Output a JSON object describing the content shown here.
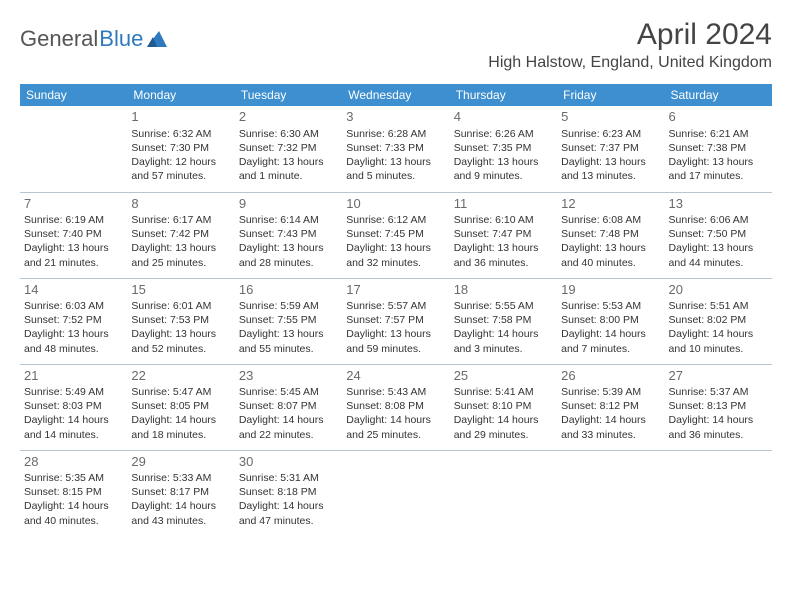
{
  "brand": {
    "word1": "General",
    "word2": "Blue"
  },
  "header": {
    "month": "April 2024",
    "location": "High Halstow, England, United Kingdom"
  },
  "colors": {
    "header_bg": "#3d8fcf",
    "header_text": "#ffffff",
    "grid_line": "#b8c5d0",
    "page_bg": "#ffffff",
    "text": "#333333",
    "brand_blue": "#2f7abf",
    "month_color": "#444444",
    "daynum_color": "#6a6a6a"
  },
  "typography": {
    "month_fontsize": 30,
    "location_fontsize": 16,
    "weekday_fontsize": 12,
    "cell_fontsize": 10.5,
    "daynum_fontsize": 13
  },
  "calendar": {
    "weekdays": [
      "Sunday",
      "Monday",
      "Tuesday",
      "Wednesday",
      "Thursday",
      "Friday",
      "Saturday"
    ],
    "weeks": [
      [
        null,
        {
          "day": "1",
          "sunrise": "Sunrise: 6:32 AM",
          "sunset": "Sunset: 7:30 PM",
          "daylight": "Daylight: 12 hours and 57 minutes."
        },
        {
          "day": "2",
          "sunrise": "Sunrise: 6:30 AM",
          "sunset": "Sunset: 7:32 PM",
          "daylight": "Daylight: 13 hours and 1 minute."
        },
        {
          "day": "3",
          "sunrise": "Sunrise: 6:28 AM",
          "sunset": "Sunset: 7:33 PM",
          "daylight": "Daylight: 13 hours and 5 minutes."
        },
        {
          "day": "4",
          "sunrise": "Sunrise: 6:26 AM",
          "sunset": "Sunset: 7:35 PM",
          "daylight": "Daylight: 13 hours and 9 minutes."
        },
        {
          "day": "5",
          "sunrise": "Sunrise: 6:23 AM",
          "sunset": "Sunset: 7:37 PM",
          "daylight": "Daylight: 13 hours and 13 minutes."
        },
        {
          "day": "6",
          "sunrise": "Sunrise: 6:21 AM",
          "sunset": "Sunset: 7:38 PM",
          "daylight": "Daylight: 13 hours and 17 minutes."
        }
      ],
      [
        {
          "day": "7",
          "sunrise": "Sunrise: 6:19 AM",
          "sunset": "Sunset: 7:40 PM",
          "daylight": "Daylight: 13 hours and 21 minutes."
        },
        {
          "day": "8",
          "sunrise": "Sunrise: 6:17 AM",
          "sunset": "Sunset: 7:42 PM",
          "daylight": "Daylight: 13 hours and 25 minutes."
        },
        {
          "day": "9",
          "sunrise": "Sunrise: 6:14 AM",
          "sunset": "Sunset: 7:43 PM",
          "daylight": "Daylight: 13 hours and 28 minutes."
        },
        {
          "day": "10",
          "sunrise": "Sunrise: 6:12 AM",
          "sunset": "Sunset: 7:45 PM",
          "daylight": "Daylight: 13 hours and 32 minutes."
        },
        {
          "day": "11",
          "sunrise": "Sunrise: 6:10 AM",
          "sunset": "Sunset: 7:47 PM",
          "daylight": "Daylight: 13 hours and 36 minutes."
        },
        {
          "day": "12",
          "sunrise": "Sunrise: 6:08 AM",
          "sunset": "Sunset: 7:48 PM",
          "daylight": "Daylight: 13 hours and 40 minutes."
        },
        {
          "day": "13",
          "sunrise": "Sunrise: 6:06 AM",
          "sunset": "Sunset: 7:50 PM",
          "daylight": "Daylight: 13 hours and 44 minutes."
        }
      ],
      [
        {
          "day": "14",
          "sunrise": "Sunrise: 6:03 AM",
          "sunset": "Sunset: 7:52 PM",
          "daylight": "Daylight: 13 hours and 48 minutes."
        },
        {
          "day": "15",
          "sunrise": "Sunrise: 6:01 AM",
          "sunset": "Sunset: 7:53 PM",
          "daylight": "Daylight: 13 hours and 52 minutes."
        },
        {
          "day": "16",
          "sunrise": "Sunrise: 5:59 AM",
          "sunset": "Sunset: 7:55 PM",
          "daylight": "Daylight: 13 hours and 55 minutes."
        },
        {
          "day": "17",
          "sunrise": "Sunrise: 5:57 AM",
          "sunset": "Sunset: 7:57 PM",
          "daylight": "Daylight: 13 hours and 59 minutes."
        },
        {
          "day": "18",
          "sunrise": "Sunrise: 5:55 AM",
          "sunset": "Sunset: 7:58 PM",
          "daylight": "Daylight: 14 hours and 3 minutes."
        },
        {
          "day": "19",
          "sunrise": "Sunrise: 5:53 AM",
          "sunset": "Sunset: 8:00 PM",
          "daylight": "Daylight: 14 hours and 7 minutes."
        },
        {
          "day": "20",
          "sunrise": "Sunrise: 5:51 AM",
          "sunset": "Sunset: 8:02 PM",
          "daylight": "Daylight: 14 hours and 10 minutes."
        }
      ],
      [
        {
          "day": "21",
          "sunrise": "Sunrise: 5:49 AM",
          "sunset": "Sunset: 8:03 PM",
          "daylight": "Daylight: 14 hours and 14 minutes."
        },
        {
          "day": "22",
          "sunrise": "Sunrise: 5:47 AM",
          "sunset": "Sunset: 8:05 PM",
          "daylight": "Daylight: 14 hours and 18 minutes."
        },
        {
          "day": "23",
          "sunrise": "Sunrise: 5:45 AM",
          "sunset": "Sunset: 8:07 PM",
          "daylight": "Daylight: 14 hours and 22 minutes."
        },
        {
          "day": "24",
          "sunrise": "Sunrise: 5:43 AM",
          "sunset": "Sunset: 8:08 PM",
          "daylight": "Daylight: 14 hours and 25 minutes."
        },
        {
          "day": "25",
          "sunrise": "Sunrise: 5:41 AM",
          "sunset": "Sunset: 8:10 PM",
          "daylight": "Daylight: 14 hours and 29 minutes."
        },
        {
          "day": "26",
          "sunrise": "Sunrise: 5:39 AM",
          "sunset": "Sunset: 8:12 PM",
          "daylight": "Daylight: 14 hours and 33 minutes."
        },
        {
          "day": "27",
          "sunrise": "Sunrise: 5:37 AM",
          "sunset": "Sunset: 8:13 PM",
          "daylight": "Daylight: 14 hours and 36 minutes."
        }
      ],
      [
        {
          "day": "28",
          "sunrise": "Sunrise: 5:35 AM",
          "sunset": "Sunset: 8:15 PM",
          "daylight": "Daylight: 14 hours and 40 minutes."
        },
        {
          "day": "29",
          "sunrise": "Sunrise: 5:33 AM",
          "sunset": "Sunset: 8:17 PM",
          "daylight": "Daylight: 14 hours and 43 minutes."
        },
        {
          "day": "30",
          "sunrise": "Sunrise: 5:31 AM",
          "sunset": "Sunset: 8:18 PM",
          "daylight": "Daylight: 14 hours and 47 minutes."
        },
        null,
        null,
        null,
        null
      ]
    ]
  }
}
